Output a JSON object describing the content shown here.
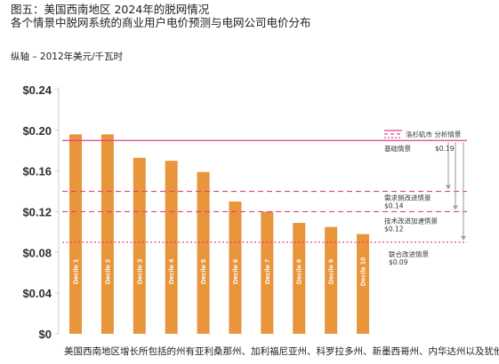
{
  "header": {
    "title": "图五：美国西南地区 2024年的脱网情况",
    "subtitle": "各个情景中脱网系统的商业用户电价预测与电网公司电价分布",
    "axis_note": "纵轴 – 2012年美元/千瓦时"
  },
  "footer": {
    "caption": "美国西南地区增长所包括的州有亚利桑那州、加利福尼亚州、科罗拉多州、新墨西哥州、内华达州以及犹他州"
  },
  "colors": {
    "bar": "#e8953c",
    "line": "#e0408a",
    "axis_text": "#2f2f2f",
    "arrow": "#a0a0a0",
    "background": "#ffffff"
  },
  "chart_data": {
    "type": "bar",
    "categories": [
      "Decile 1",
      "Decile 2",
      "Decile 3",
      "Decile 4",
      "Decile 5",
      "Decile 6",
      "Decile 7",
      "Decile 8",
      "Decile 9",
      "Decile 10"
    ],
    "values": [
      0.196,
      0.196,
      0.173,
      0.17,
      0.159,
      0.13,
      0.12,
      0.109,
      0.105,
      0.098
    ],
    "ylim": [
      0,
      0.26
    ],
    "yticks": [
      0,
      0.04,
      0.08,
      0.12,
      0.16,
      0.2,
      0.24
    ],
    "ytick_labels": [
      "$0",
      "$0.04",
      "$0.08",
      "$0.12",
      "$0.16",
      "$0.20",
      "$0.24"
    ],
    "grid": false,
    "legend": {
      "position": "top-right",
      "label": "洛杉矶市 分析情景"
    },
    "reference_lines": [
      {
        "name": "基础情景",
        "value": 0.19,
        "value_label": "$0.19",
        "style": "solid"
      },
      {
        "name": "需求侧改进情景",
        "value": 0.14,
        "value_label": "$0.14",
        "style": "dashed"
      },
      {
        "name": "技术改进加速情景",
        "value": 0.12,
        "value_label": "$0.12",
        "style": "dashed"
      },
      {
        "name": "联合改进情景",
        "value": 0.09,
        "value_label": "$0.09",
        "style": "dotted"
      }
    ]
  }
}
